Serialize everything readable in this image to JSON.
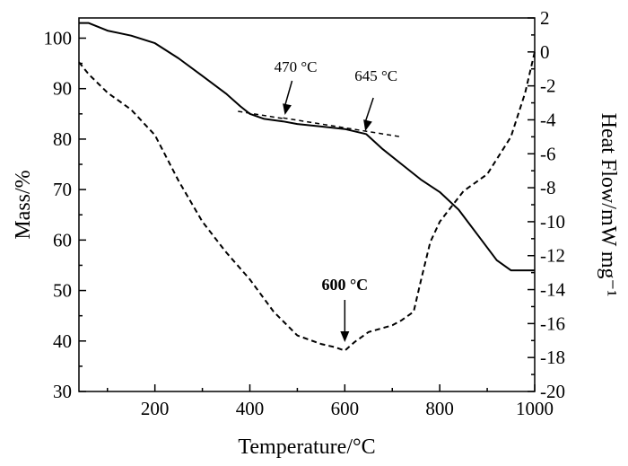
{
  "chart_data": {
    "type": "line",
    "title": "",
    "xlabel": "Temperature/°C",
    "ylabel_left": "Mass/%",
    "ylabel_right": "Heat Flow/mW mg⁻¹",
    "xlim": [
      40,
      1000
    ],
    "ylim_left": [
      30,
      104
    ],
    "ylim_right": [
      -20,
      2
    ],
    "x_ticks": [
      200,
      400,
      600,
      800,
      1000
    ],
    "y_left_ticks": [
      30,
      40,
      50,
      60,
      70,
      80,
      90,
      100
    ],
    "y_right_ticks": [
      2,
      0,
      -2,
      -4,
      -6,
      -8,
      -10,
      -12,
      -14,
      -16,
      -18,
      -20
    ],
    "x_tick_labels": [
      "200",
      "400",
      "600",
      "800",
      "1000"
    ],
    "y_left_tick_labels": [
      "30",
      "40",
      "50",
      "60",
      "70",
      "80",
      "90",
      "100"
    ],
    "y_right_tick_labels": [
      "2",
      "0",
      "-2",
      "-4",
      "-6",
      "-8",
      "-10",
      "-12",
      "-14",
      "-16",
      "-18",
      "-20"
    ],
    "grid": false,
    "legend": "none",
    "series": [
      {
        "axis": "left",
        "style": "solid",
        "x": [
          40,
          60,
          100,
          150,
          200,
          250,
          300,
          350,
          380,
          400,
          430,
          470,
          500,
          550,
          600,
          645,
          680,
          720,
          760,
          800,
          840,
          880,
          920,
          950,
          970,
          1000
        ],
        "y": [
          103,
          103,
          101.5,
          100.5,
          99,
          96,
          92.5,
          89,
          86.5,
          85,
          84,
          83.5,
          83,
          82.5,
          82,
          81,
          78,
          75,
          72,
          69.5,
          66,
          61,
          56,
          54,
          54,
          54
        ]
      },
      {
        "axis": "right",
        "style": "dashed",
        "x": [
          40,
          60,
          100,
          150,
          200,
          250,
          300,
          350,
          400,
          450,
          500,
          550,
          580,
          600,
          620,
          650,
          700,
          720,
          745,
          760,
          780,
          800,
          850,
          900,
          950,
          980,
          1000
        ],
        "y": [
          -0.6,
          -1.3,
          -2.4,
          -3.4,
          -4.9,
          -7.6,
          -10.0,
          -11.8,
          -13.4,
          -15.3,
          -16.7,
          -17.2,
          -17.4,
          -17.6,
          -17.1,
          -16.5,
          -16.1,
          -15.8,
          -15.3,
          -13.5,
          -11.2,
          -10.0,
          -8.2,
          -7.2,
          -5.0,
          -2.4,
          0.0
        ]
      }
    ],
    "annotations": [
      {
        "text": "470 °C",
        "x": 470,
        "y": 83.6,
        "axis": "left",
        "bold": false
      },
      {
        "text": "645 °C",
        "x": 645,
        "y": 81.2,
        "axis": "left",
        "bold": false
      },
      {
        "text": "600 °C",
        "x": 600,
        "y": -17.6,
        "axis": "right",
        "bold": true
      }
    ],
    "tangent_lines": [
      {
        "x": [
          375,
          475
        ],
        "y": [
          85.5,
          84.0
        ],
        "axis": "left"
      },
      {
        "x": [
          470,
          715
        ],
        "y": [
          84.2,
          80.5
        ],
        "axis": "left"
      }
    ]
  }
}
